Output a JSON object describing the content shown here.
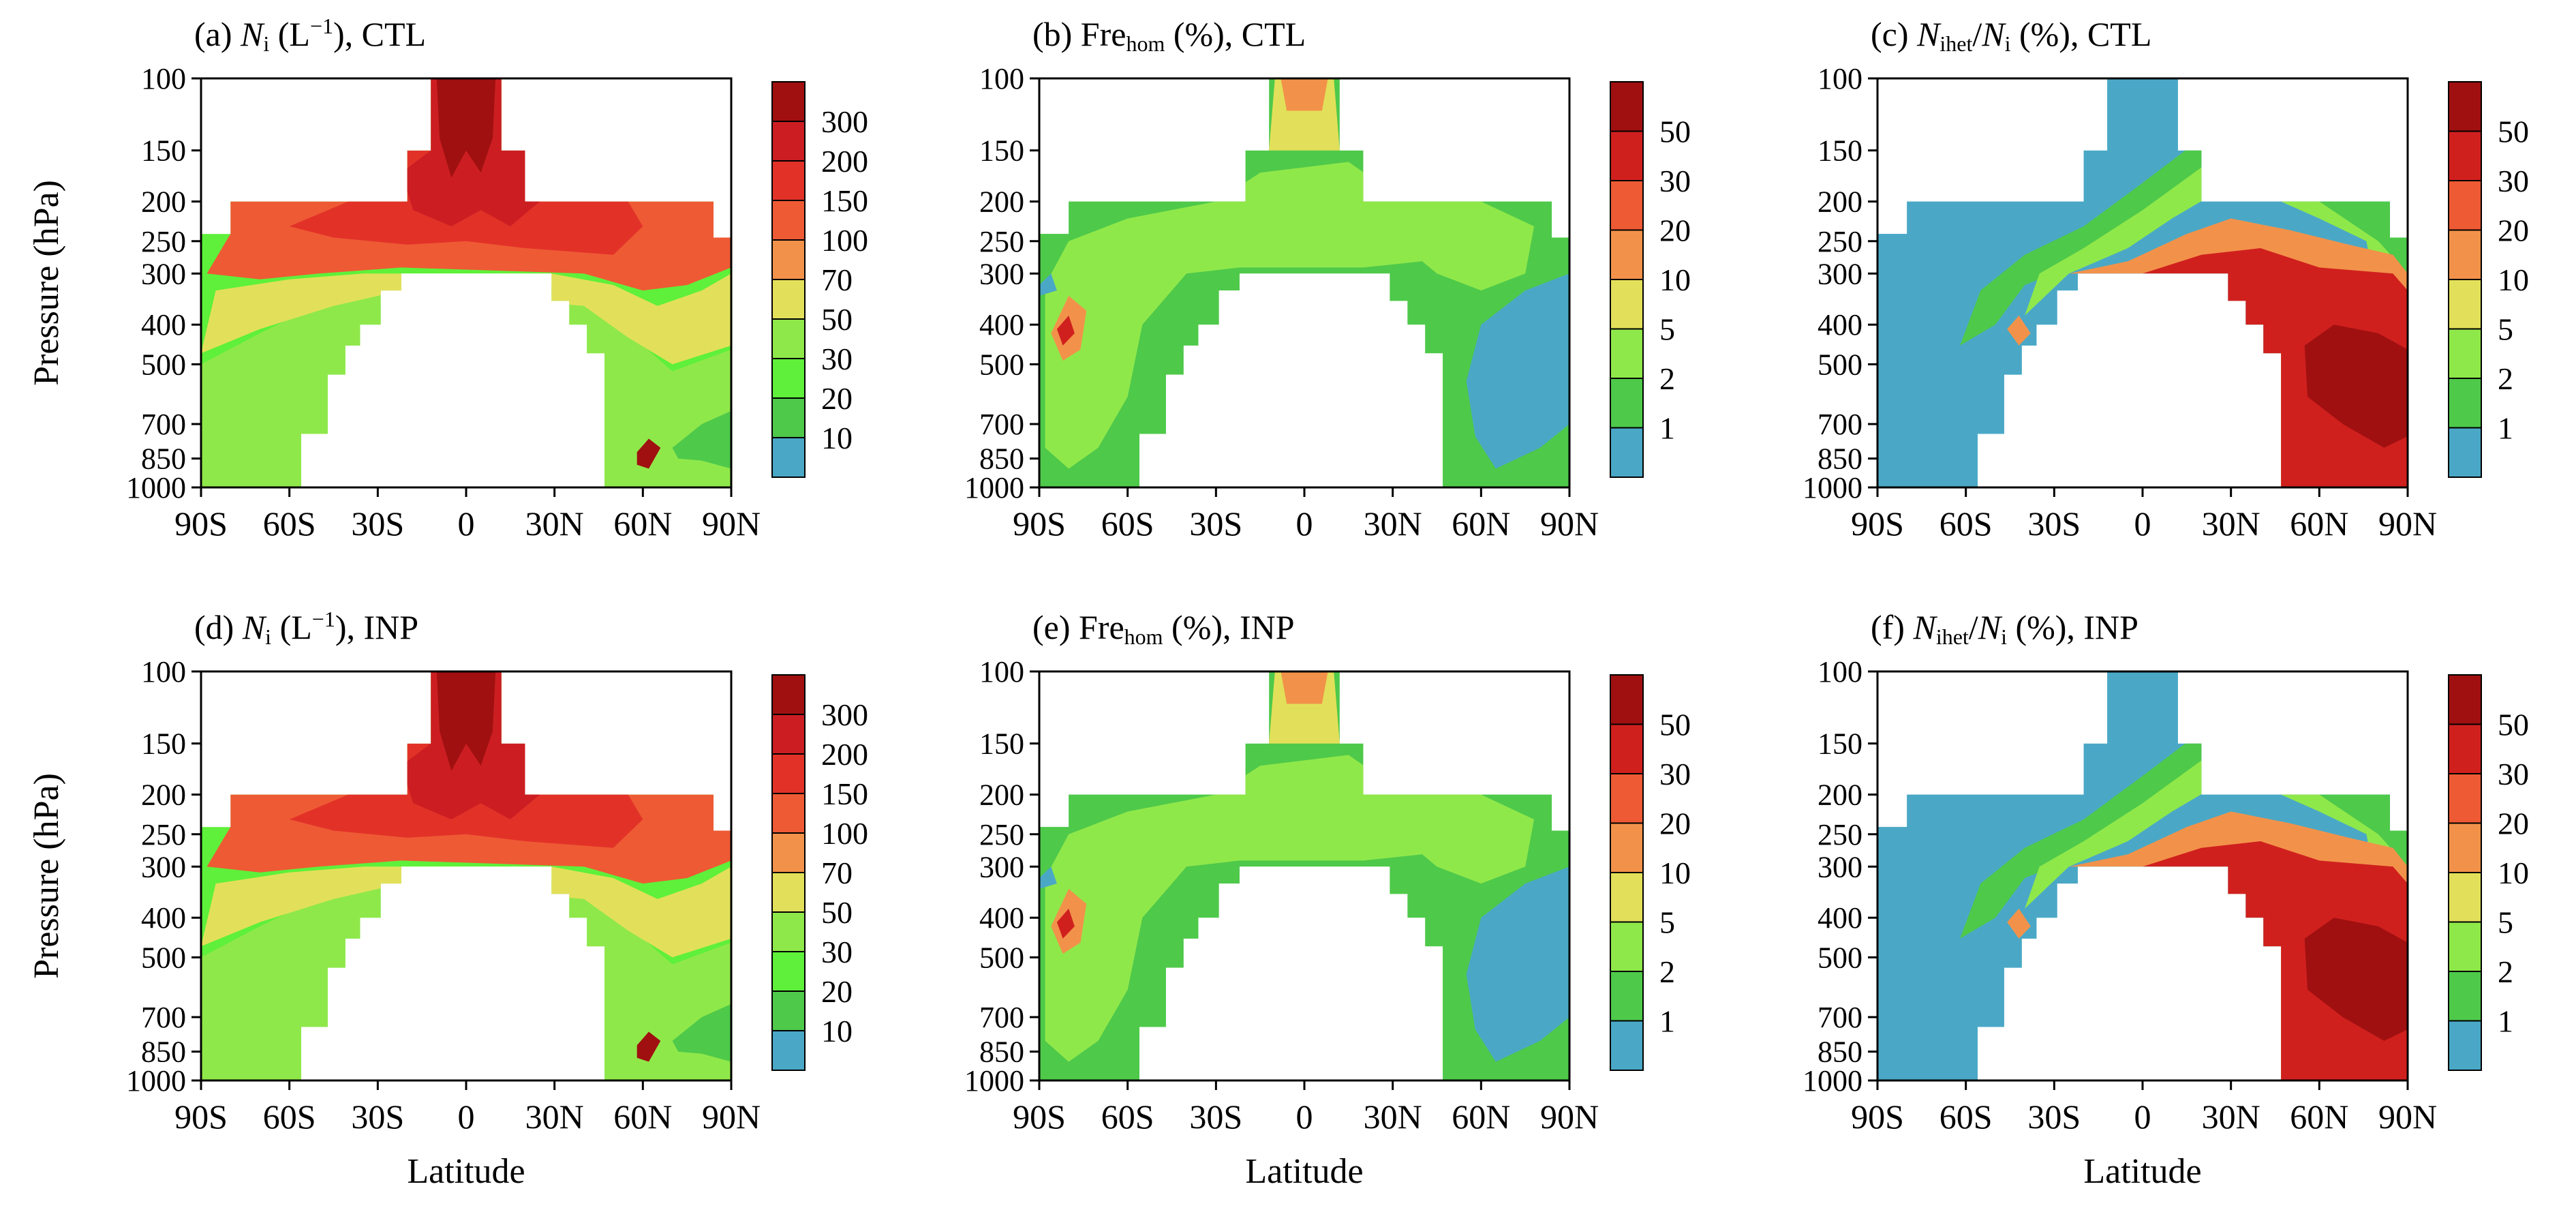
{
  "figure": {
    "ylabel": "Pressure (hPa)",
    "xlabel": "Latitude"
  },
  "axis": {
    "x_ticks": [
      "90S",
      "60S",
      "30S",
      "0",
      "30N",
      "60N",
      "90N"
    ],
    "y_ticks": [
      "100",
      "150",
      "200",
      "250",
      "300",
      "400",
      "500",
      "700",
      "850",
      "1000"
    ]
  },
  "chart_data": [
    {
      "type": "heatmap",
      "id": "a",
      "title_parts": [
        "(a) ",
        "N",
        "i",
        " (L",
        "−1",
        "), CTL"
      ],
      "variable": "Ni",
      "experiment": "CTL",
      "xlabel": "",
      "ylabel": "Pressure (hPa)",
      "xlim": [
        -90,
        90
      ],
      "ylim": [
        1000,
        100
      ],
      "yscale": "log",
      "colorbar": {
        "levels": [
          "10",
          "20",
          "30",
          "50",
          "70",
          "100",
          "150",
          "200",
          "300"
        ],
        "colors": [
          "#4aa8c6",
          "#4ec94a",
          "#5ef03a",
          "#8fe84a",
          "#e2e05a",
          "#f2924a",
          "#ee5a34",
          "#e23228",
          "#cc1e22",
          "#a01010"
        ]
      }
    },
    {
      "type": "heatmap",
      "id": "b",
      "title_parts": [
        "(b) Fre",
        "hom",
        " (%), CTL"
      ],
      "variable": "Frehom",
      "experiment": "CTL",
      "xlabel": "",
      "ylabel": "",
      "xlim": [
        -90,
        90
      ],
      "ylim": [
        1000,
        100
      ],
      "yscale": "log",
      "colorbar": {
        "levels": [
          "1",
          "2",
          "5",
          "10",
          "20",
          "30",
          "50"
        ],
        "colors": [
          "#4aa8c6",
          "#4ec94a",
          "#8fe84a",
          "#e2e05a",
          "#f2924a",
          "#ee5a34",
          "#d0201e",
          "#a01010"
        ]
      }
    },
    {
      "type": "heatmap",
      "id": "c",
      "title_parts": [
        "(c) ",
        "N",
        "ihet",
        "/",
        "N",
        "i",
        " (%), CTL"
      ],
      "variable": "Nihet/Ni",
      "experiment": "CTL",
      "xlabel": "",
      "ylabel": "",
      "xlim": [
        -90,
        90
      ],
      "ylim": [
        1000,
        100
      ],
      "yscale": "log",
      "colorbar": {
        "levels": [
          "1",
          "2",
          "5",
          "10",
          "20",
          "30",
          "50"
        ],
        "colors": [
          "#4aa8c6",
          "#4ec94a",
          "#8fe84a",
          "#e2e05a",
          "#f2924a",
          "#ee5a34",
          "#d0201e",
          "#a01010"
        ]
      }
    },
    {
      "type": "heatmap",
      "id": "d",
      "title_parts": [
        "(d) ",
        "N",
        "i",
        " (L",
        "−1",
        "), INP"
      ],
      "variable": "Ni",
      "experiment": "INP",
      "xlabel": "Latitude",
      "ylabel": "Pressure (hPa)",
      "xlim": [
        -90,
        90
      ],
      "ylim": [
        1000,
        100
      ],
      "yscale": "log",
      "colorbar": {
        "levels": [
          "10",
          "20",
          "30",
          "50",
          "70",
          "100",
          "150",
          "200",
          "300"
        ],
        "colors": [
          "#4aa8c6",
          "#4ec94a",
          "#5ef03a",
          "#8fe84a",
          "#e2e05a",
          "#f2924a",
          "#ee5a34",
          "#e23228",
          "#cc1e22",
          "#a01010"
        ]
      }
    },
    {
      "type": "heatmap",
      "id": "e",
      "title_parts": [
        "(e) Fre",
        "hom",
        " (%), INP"
      ],
      "variable": "Frehom",
      "experiment": "INP",
      "xlabel": "Latitude",
      "ylabel": "",
      "xlim": [
        -90,
        90
      ],
      "ylim": [
        1000,
        100
      ],
      "yscale": "log",
      "colorbar": {
        "levels": [
          "1",
          "2",
          "5",
          "10",
          "20",
          "30",
          "50"
        ],
        "colors": [
          "#4aa8c6",
          "#4ec94a",
          "#8fe84a",
          "#e2e05a",
          "#f2924a",
          "#ee5a34",
          "#d0201e",
          "#a01010"
        ]
      }
    },
    {
      "type": "heatmap",
      "id": "f",
      "title_parts": [
        "(f) ",
        "N",
        "ihet",
        "/",
        "N",
        "i",
        " (%), INP"
      ],
      "variable": "Nihet/Ni",
      "experiment": "INP",
      "xlabel": "Latitude",
      "ylabel": "",
      "xlim": [
        -90,
        90
      ],
      "ylim": [
        1000,
        100
      ],
      "yscale": "log",
      "colorbar": {
        "levels": [
          "1",
          "2",
          "5",
          "10",
          "20",
          "30",
          "50"
        ],
        "colors": [
          "#4aa8c6",
          "#4ec94a",
          "#8fe84a",
          "#e2e05a",
          "#f2924a",
          "#ee5a34",
          "#d0201e",
          "#a01010"
        ]
      }
    }
  ]
}
